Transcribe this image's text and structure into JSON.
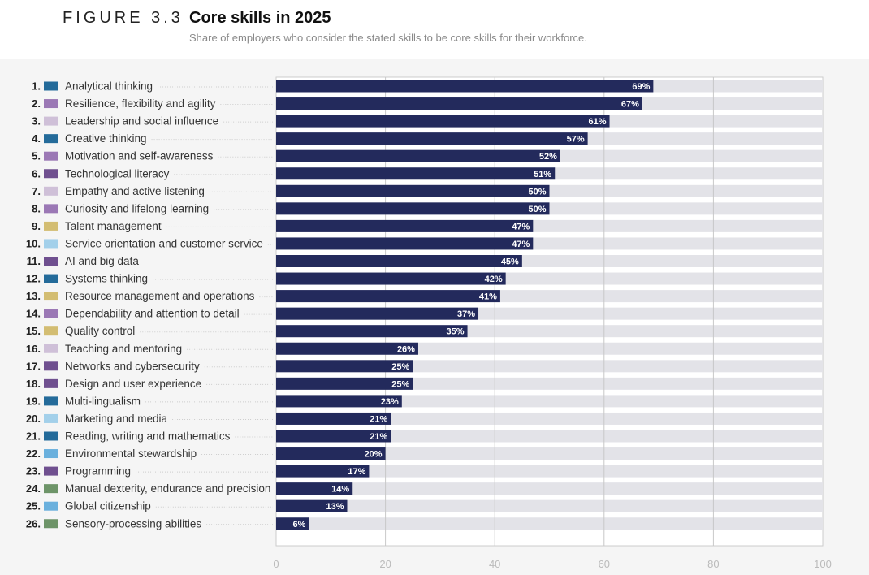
{
  "header": {
    "figure_label": "FIGURE 3.3",
    "title": "Core skills in 2025",
    "subtitle": "Share of employers who consider the stated skills to be core skills for their workforce."
  },
  "colors": {
    "bar": "#232a5c",
    "track": "#e3e3e8",
    "plot_bg": "#ffffff",
    "categories": {
      "cognitive": "#246b9a",
      "self": "#9b78b5",
      "engagement": "#cfc0d8",
      "tech": "#6f4f8f",
      "management": "#d3bd72",
      "service": "#a3d0ea",
      "stewardship": "#6ab0dd",
      "physical": "#6d9468"
    }
  },
  "chart_data": {
    "type": "bar",
    "orientation": "horizontal",
    "title": "Core skills in 2025",
    "xlim": [
      0,
      100
    ],
    "xticks": [
      0,
      20,
      40,
      60,
      80,
      100
    ],
    "value_suffix": "%",
    "categories": [
      {
        "rank": "1.",
        "label": "Analytical thinking",
        "value": 69,
        "swatch": "cognitive"
      },
      {
        "rank": "2.",
        "label": "Resilience, flexibility and agility",
        "value": 67,
        "swatch": "self"
      },
      {
        "rank": "3.",
        "label": "Leadership and social influence",
        "value": 61,
        "swatch": "engagement"
      },
      {
        "rank": "4.",
        "label": "Creative thinking",
        "value": 57,
        "swatch": "cognitive"
      },
      {
        "rank": "5.",
        "label": "Motivation and self-awareness",
        "value": 52,
        "swatch": "self"
      },
      {
        "rank": "6.",
        "label": "Technological literacy",
        "value": 51,
        "swatch": "tech"
      },
      {
        "rank": "7.",
        "label": "Empathy and active listening",
        "value": 50,
        "swatch": "engagement"
      },
      {
        "rank": "8.",
        "label": "Curiosity and lifelong learning",
        "value": 50,
        "swatch": "self"
      },
      {
        "rank": "9.",
        "label": "Talent management",
        "value": 47,
        "swatch": "management"
      },
      {
        "rank": "10.",
        "label": "Service orientation and customer service",
        "value": 47,
        "swatch": "service"
      },
      {
        "rank": "11.",
        "label": "AI and big data",
        "value": 45,
        "swatch": "tech"
      },
      {
        "rank": "12.",
        "label": "Systems thinking",
        "value": 42,
        "swatch": "cognitive"
      },
      {
        "rank": "13.",
        "label": "Resource management and operations",
        "value": 41,
        "swatch": "management"
      },
      {
        "rank": "14.",
        "label": "Dependability and attention to detail",
        "value": 37,
        "swatch": "self"
      },
      {
        "rank": "15.",
        "label": "Quality control",
        "value": 35,
        "swatch": "management"
      },
      {
        "rank": "16.",
        "label": "Teaching and mentoring",
        "value": 26,
        "swatch": "engagement"
      },
      {
        "rank": "17.",
        "label": "Networks and cybersecurity",
        "value": 25,
        "swatch": "tech"
      },
      {
        "rank": "18.",
        "label": "Design and user experience",
        "value": 25,
        "swatch": "tech"
      },
      {
        "rank": "19.",
        "label": "Multi-lingualism",
        "value": 23,
        "swatch": "cognitive"
      },
      {
        "rank": "20.",
        "label": "Marketing and media",
        "value": 21,
        "swatch": "service"
      },
      {
        "rank": "21.",
        "label": "Reading, writing and mathematics",
        "value": 21,
        "swatch": "cognitive"
      },
      {
        "rank": "22.",
        "label": "Environmental stewardship",
        "value": 20,
        "swatch": "stewardship"
      },
      {
        "rank": "23.",
        "label": "Programming",
        "value": 17,
        "swatch": "tech"
      },
      {
        "rank": "24.",
        "label": "Manual dexterity, endurance and precision",
        "value": 14,
        "swatch": "physical"
      },
      {
        "rank": "25.",
        "label": "Global citizenship",
        "value": 13,
        "swatch": "stewardship"
      },
      {
        "rank": "26.",
        "label": "Sensory-processing abilities",
        "value": 6,
        "swatch": "physical"
      }
    ]
  }
}
